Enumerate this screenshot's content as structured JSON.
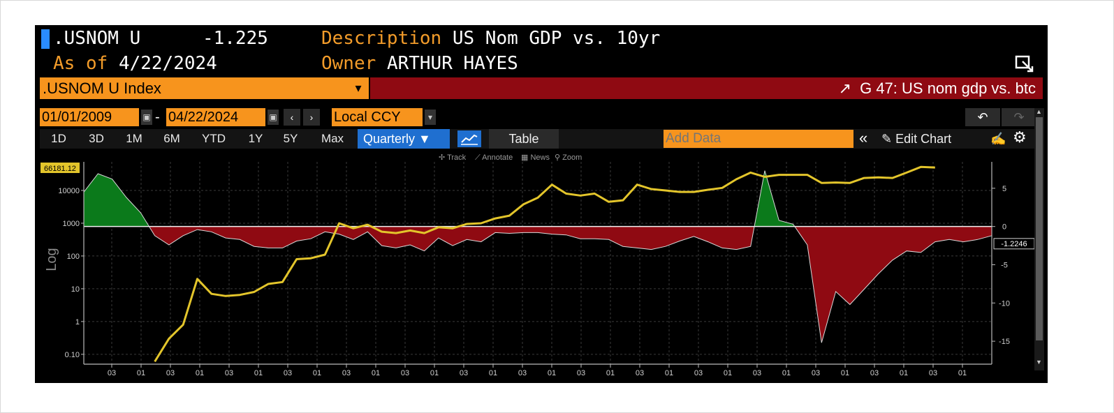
{
  "header": {
    "ticker": ".USNOM U",
    "last_value": "-1.225",
    "description_label": "Description",
    "description": "US Nom GDP vs. 10yr",
    "asof_label": "As of",
    "asof_date": "4/22/2024",
    "owner_label": "Owner",
    "owner": "ARTHUR HAYES"
  },
  "security": {
    "name": ".USNOM U Index",
    "launchpad": "G 47: US nom gdp vs. btc"
  },
  "controls": {
    "start_date": "01/01/2009",
    "date_separator": "-",
    "end_date": "04/22/2024",
    "currency": "Local CCY",
    "periods": [
      "1D",
      "3D",
      "1M",
      "6M",
      "YTD",
      "1Y",
      "5Y",
      "Max"
    ],
    "frequency": "Quarterly ▼",
    "table_label": "Table",
    "add_data_placeholder": "Add Data",
    "collapse_glyph": "«",
    "edit_chart_label": "Edit Chart",
    "undo_glyph": "↶",
    "redo_glyph": "↷",
    "tools": [
      "Track",
      "Annotate",
      "News",
      "Zoom"
    ]
  },
  "colors": {
    "yellow_line": "#e3c52b",
    "positive_fill": "#0b7a1b",
    "negative_fill": "#8f0a12",
    "accent_orange": "#f7941d",
    "header_orange": "#f39c2a",
    "highlight_blue": "#1f6fd0"
  },
  "chart_data": {
    "type": "line",
    "left_axis": {
      "label": "Log",
      "scale": "log",
      "ticks": [
        "10000",
        "1000",
        "100",
        "10",
        "1",
        "0.10"
      ],
      "range": [
        0.05,
        100000
      ],
      "last_value_label": "66181.12"
    },
    "right_axis": {
      "ticks": [
        "5",
        "0",
        "-5",
        "-10",
        "-15"
      ],
      "range": [
        -18,
        9
      ],
      "last_value_label": "-1.2246"
    },
    "x_tick_labels": [
      "03",
      "01",
      "03",
      "01",
      "03",
      "01",
      "03",
      "01",
      "03",
      "01",
      "03",
      "01",
      "03",
      "01",
      "03",
      "01",
      "03",
      "01",
      "03",
      "01",
      "03",
      "01",
      "03",
      "01",
      "03",
      "01",
      "03",
      "01",
      "03",
      "01"
    ],
    "series": [
      {
        "axis": "right",
        "style": "area",
        "values": [
          4.5,
          6.9,
          6.2,
          3.8,
          1.8,
          -1.2,
          -2.4,
          -1.2,
          -0.4,
          -0.7,
          -1.5,
          -1.7,
          -2.6,
          -2.8,
          -2.8,
          -1.9,
          -1.6,
          -0.7,
          -1.0,
          -1.7,
          -0.7,
          -2.5,
          -2.8,
          -2.4,
          -3.2,
          -1.5,
          -2.5,
          -1.7,
          -2.0,
          -0.8,
          -0.9,
          -0.8,
          -0.8,
          -1.0,
          -1.1,
          -1.6,
          -1.6,
          -1.7,
          -2.6,
          -2.8,
          -3.0,
          -2.6,
          -1.9,
          -1.3,
          -2.0,
          -2.8,
          -3.0,
          -2.6,
          7.3,
          0.8,
          0.3,
          -2.4,
          -15.2,
          -8.5,
          -10.2,
          -8.2,
          -6.2,
          -4.4,
          -3.2,
          -3.4,
          -2.0,
          -1.7,
          -2.0,
          -1.7,
          -1.2
        ]
      },
      {
        "axis": "left",
        "style": "line",
        "x_start_index": 5,
        "values": [
          0.06,
          0.3,
          0.8,
          20,
          7,
          6,
          6.5,
          8,
          14,
          16,
          80,
          85,
          110,
          1000,
          700,
          900,
          550,
          500,
          600,
          500,
          750,
          700,
          950,
          1000,
          1400,
          1700,
          3800,
          6000,
          15000,
          8000,
          7000,
          8000,
          4500,
          5000,
          15000,
          11000,
          10000,
          9000,
          9000,
          10500,
          12000,
          22000,
          35000,
          26000,
          30000,
          30000,
          30000,
          17000,
          17500,
          17000,
          24000,
          25000,
          24000,
          35000,
          52000,
          50000
        ]
      }
    ],
    "grid": true
  }
}
